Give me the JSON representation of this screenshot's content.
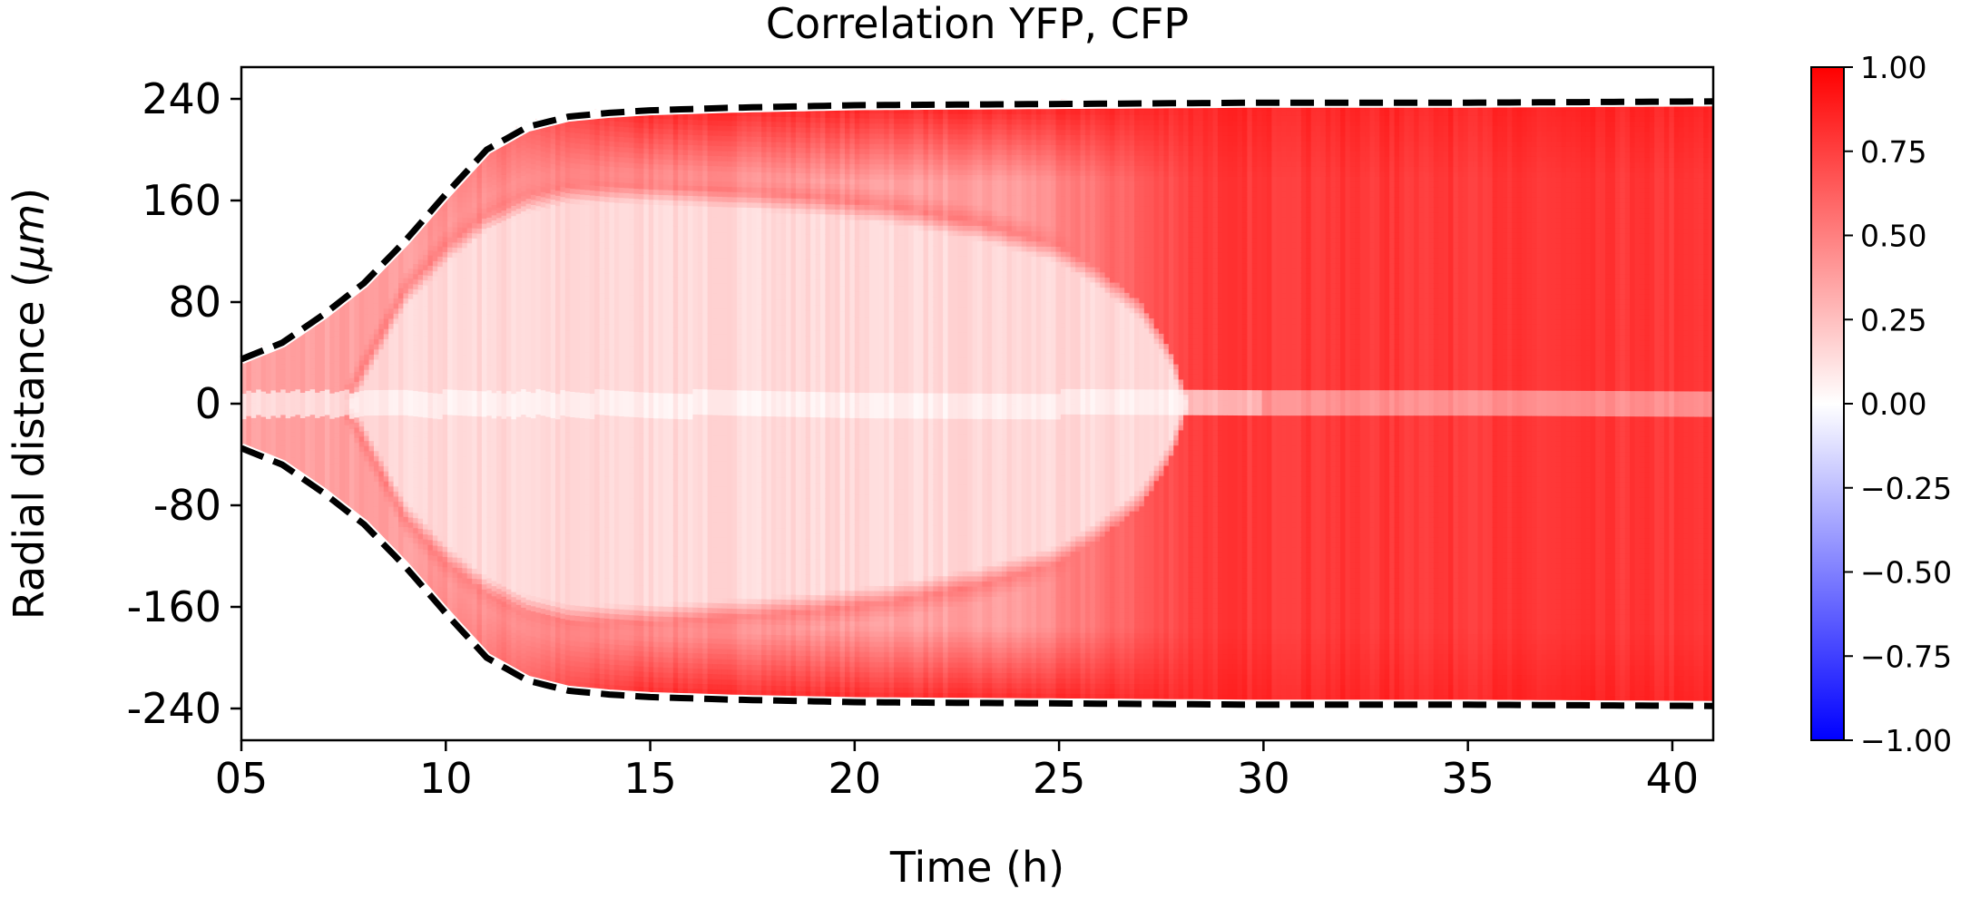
{
  "chart_data": {
    "type": "heatmap",
    "title": "Correlation YFP, CFP",
    "xlabel": "Time (h)",
    "ylabel_prefix": "Radial distance (",
    "ylabel_unit": "μm",
    "ylabel_suffix": ")",
    "xlim": [
      5,
      41
    ],
    "ylim": [
      -265,
      265
    ],
    "x_ticks": [
      5,
      10,
      15,
      20,
      25,
      30,
      35,
      40
    ],
    "x_tick_labels": [
      "05",
      "10",
      "15",
      "20",
      "25",
      "30",
      "35",
      "40"
    ],
    "y_ticks": [
      240,
      160,
      80,
      0,
      -80,
      -160,
      -240
    ],
    "y_tick_labels": [
      "240",
      "160",
      "80",
      "0",
      "-80",
      "-160",
      "-240"
    ],
    "colorbar": {
      "colormap": "bwr",
      "vmin": -1.0,
      "vmax": 1.0,
      "ticks": [
        1.0,
        0.75,
        0.5,
        0.25,
        0.0,
        -0.25,
        -0.5,
        -0.75,
        -1.0
      ],
      "tick_labels": [
        "1.00",
        "0.75",
        "0.50",
        "0.25",
        "0.00",
        "−0.25",
        "−0.50",
        "−0.75",
        "−1.00"
      ],
      "colors": {
        "low": "#0000ff",
        "mid": "#ffffff",
        "high": "#ff0000"
      }
    },
    "boundary": {
      "style": "dashed",
      "color": "#000000",
      "time": [
        5,
        6,
        7,
        8,
        9,
        10,
        11,
        12,
        13,
        14,
        15,
        17,
        20,
        25,
        30,
        35,
        41
      ],
      "radius": [
        35,
        48,
        70,
        95,
        128,
        165,
        200,
        218,
        226,
        229,
        231,
        233,
        235,
        236,
        237,
        237,
        238
      ]
    },
    "features": {
      "ring": {
        "description_values": "correlation ridge",
        "time": [
          7.5,
          9,
          10,
          11,
          12,
          13,
          15,
          17,
          19,
          21,
          23,
          25,
          26,
          27,
          27.7,
          28.2
        ],
        "radius": [
          0,
          90,
          125,
          150,
          165,
          172,
          172,
          168,
          163,
          155,
          143,
          125,
          105,
          80,
          45,
          0
        ],
        "value": 0.5
      },
      "interior_value_early": 0.15,
      "interior_value_late": 0.78,
      "edge_band_value": 0.85,
      "center_line_value": 0.02
    }
  }
}
